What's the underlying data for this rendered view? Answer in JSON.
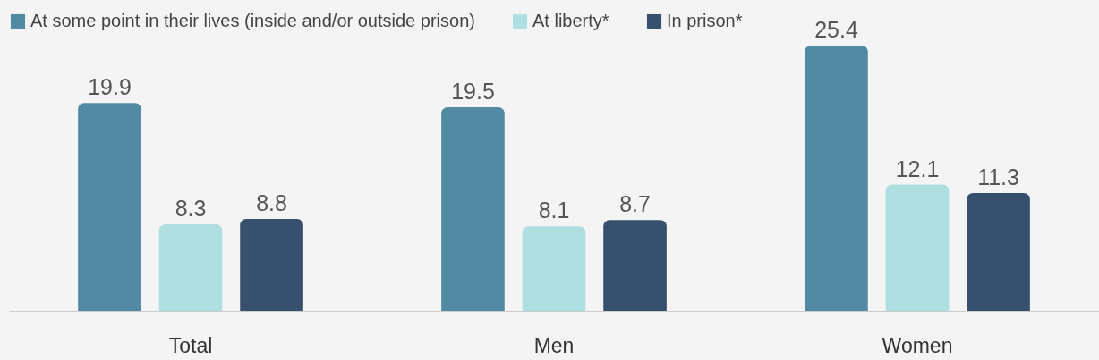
{
  "chart_data": {
    "type": "bar",
    "categories": [
      "Total",
      "Men",
      "Women"
    ],
    "series": [
      {
        "name": "At some point in their lives (inside and/or outside prison)",
        "color": "#538aa3",
        "values": [
          19.9,
          19.5,
          25.4
        ]
      },
      {
        "name": "At liberty*",
        "color": "#b0dfe1",
        "values": [
          8.3,
          8.1,
          12.1
        ]
      },
      {
        "name": "In prison*",
        "color": "#36506d",
        "values": [
          8.8,
          8.7,
          11.3
        ]
      }
    ],
    "data_labels": true,
    "legend": "top"
  }
}
